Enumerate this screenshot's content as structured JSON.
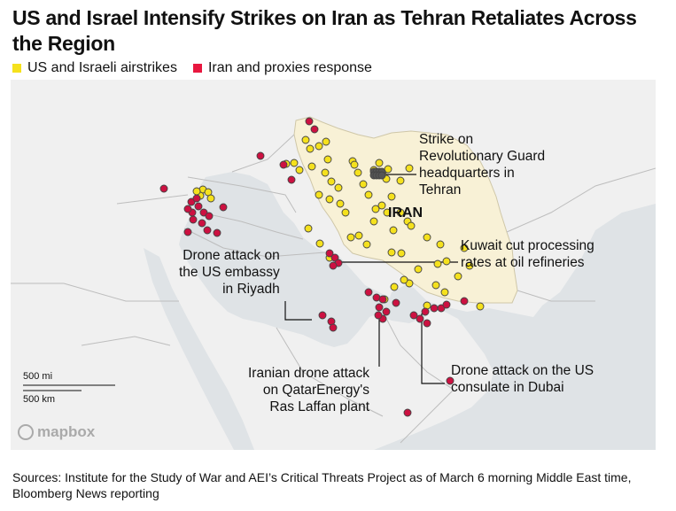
{
  "title": "US and Israel Intensify Strikes on Iran as Tehran Retaliates Across the Region",
  "legend": [
    {
      "label": "US and Israeli airstrikes",
      "color": "#f5e11d"
    },
    {
      "label": "Iran and proxies response",
      "color": "#e8173f"
    }
  ],
  "map": {
    "country_label": "IRAN",
    "iran_fill": "#f8f1d6",
    "airstrike_color": "#f5e11d",
    "response_color": "#cc1141",
    "annotations": {
      "tehran": "Strike on\nRevolutionary Guard\nheadquarters in\nTehran",
      "kuwait": "Kuwait cut processing\nrates at oil refineries",
      "riyadh": "Drone attack on\nthe US embassy\nin Riyadh",
      "qatar": "Iranian drone attack\non QatarEnergy's\nRas Laffan plant",
      "dubai": "Drone attack on the US\nconsulate in Dubai"
    },
    "scale": {
      "miles": "500 mi",
      "km": "500 km"
    },
    "attribution": "mapbox"
  },
  "source": "Sources: Institute for the Study of War and AEI’s Critical Threats Project as of March 6 morning Middle East time, Bloomberg News reporting"
}
